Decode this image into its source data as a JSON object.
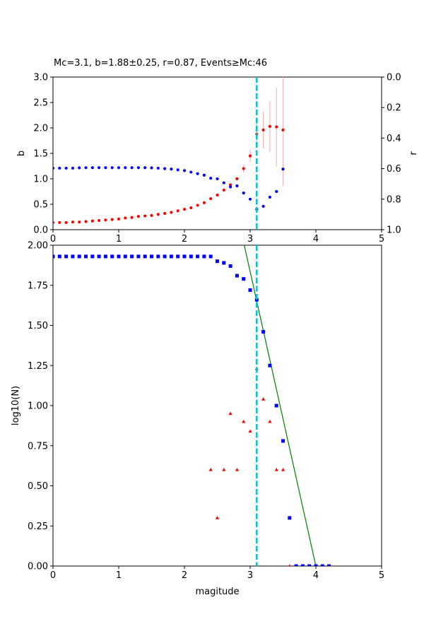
{
  "title": "Mc=3.1, b=1.88±0.25, r=0.87, Events≥Mc:46",
  "colors": {
    "b_series": "#ff0000",
    "r_series": "#0000ff",
    "mc_line": "#17becf",
    "fit_line": "#008000",
    "errorbar": "#ffb6b6",
    "cum_series": "#0000ff",
    "noncum_series": "#ff0000"
  },
  "chart_data": [
    {
      "type": "scatter",
      "panel": "top",
      "xlim": [
        0,
        5
      ],
      "ylim": [
        0,
        3
      ],
      "y2lim": [
        0,
        1
      ],
      "y2_inverted": true,
      "ylabel": "b",
      "y2label": "r",
      "xticks": [
        "0",
        "1",
        "2",
        "3",
        "4",
        "5"
      ],
      "yticks": [
        "0.0",
        "0.5",
        "1.0",
        "1.5",
        "2.0",
        "2.5",
        "3.0"
      ],
      "y2ticks": [
        "0.0",
        "0.2",
        "0.4",
        "0.6",
        "0.8",
        "1.0"
      ],
      "mc": 3.1,
      "series": [
        {
          "axis": "left",
          "x": [
            0.0,
            0.1,
            0.2,
            0.3,
            0.4,
            0.5,
            0.6,
            0.7,
            0.8,
            0.9,
            1.0,
            1.1,
            1.2,
            1.3,
            1.4,
            1.5,
            1.6,
            1.7,
            1.8,
            1.9,
            2.0,
            2.1,
            2.2,
            2.3,
            2.4,
            2.5,
            2.6,
            2.7,
            2.8,
            2.9,
            3.0,
            3.1,
            3.2,
            3.3,
            3.4,
            3.5
          ],
          "values": [
            0.14,
            0.14,
            0.14,
            0.15,
            0.15,
            0.16,
            0.17,
            0.18,
            0.19,
            0.2,
            0.21,
            0.23,
            0.24,
            0.26,
            0.27,
            0.28,
            0.3,
            0.32,
            0.34,
            0.37,
            0.4,
            0.43,
            0.48,
            0.53,
            0.61,
            0.68,
            0.78,
            0.88,
            1.0,
            1.2,
            1.45,
            1.88,
            1.96,
            2.03,
            2.02,
            1.96
          ],
          "err": [
            0,
            0,
            0,
            0,
            0,
            0,
            0,
            0,
            0,
            0,
            0,
            0,
            0,
            0,
            0,
            0,
            0,
            0,
            0,
            0,
            0,
            0,
            0,
            0,
            0,
            0,
            0,
            0,
            0,
            0.08,
            0.12,
            0.25,
            0.36,
            0.5,
            0.78,
            1.1
          ]
        },
        {
          "axis": "right",
          "x": [
            0.0,
            0.1,
            0.2,
            0.3,
            0.4,
            0.5,
            0.6,
            0.7,
            0.8,
            0.9,
            1.0,
            1.1,
            1.2,
            1.3,
            1.4,
            1.5,
            1.6,
            1.7,
            1.8,
            1.9,
            2.0,
            2.1,
            2.2,
            2.3,
            2.4,
            2.5,
            2.6,
            2.7,
            2.8,
            2.9,
            3.0,
            3.1,
            3.2,
            3.3,
            3.4,
            3.5
          ],
          "values": [
            0.597,
            0.597,
            0.597,
            0.597,
            0.595,
            0.594,
            0.594,
            0.594,
            0.594,
            0.594,
            0.594,
            0.594,
            0.594,
            0.594,
            0.594,
            0.595,
            0.597,
            0.6,
            0.603,
            0.608,
            0.613,
            0.623,
            0.633,
            0.643,
            0.663,
            0.667,
            0.693,
            0.72,
            0.713,
            0.76,
            0.8,
            0.867,
            0.847,
            0.787,
            0.75,
            0.603
          ]
        }
      ]
    },
    {
      "type": "scatter",
      "panel": "bottom",
      "xlim": [
        0,
        5
      ],
      "ylim": [
        0,
        2
      ],
      "xlabel": "magitude",
      "ylabel": "log10(N)",
      "xticks": [
        "0",
        "1",
        "2",
        "3",
        "4",
        "5"
      ],
      "yticks": [
        "0.00",
        "0.25",
        "0.50",
        "0.75",
        "1.00",
        "1.25",
        "1.50",
        "1.75",
        "2.00"
      ],
      "mc": 3.1,
      "fit_line": {
        "x": [
          2.91,
          4.0
        ],
        "y": [
          2.0,
          0.0
        ]
      },
      "series": [
        {
          "marker": "square",
          "x": [
            0.0,
            0.1,
            0.2,
            0.3,
            0.4,
            0.5,
            0.6,
            0.7,
            0.8,
            0.9,
            1.0,
            1.1,
            1.2,
            1.3,
            1.4,
            1.5,
            1.6,
            1.7,
            1.8,
            1.9,
            2.0,
            2.1,
            2.2,
            2.3,
            2.4,
            2.5,
            2.6,
            2.7,
            2.8,
            2.9,
            3.0,
            3.1,
            3.2,
            3.3,
            3.4,
            3.5,
            3.6,
            3.7,
            3.8,
            3.9,
            4.0,
            4.1,
            4.2
          ],
          "values": [
            1.93,
            1.93,
            1.93,
            1.93,
            1.93,
            1.93,
            1.93,
            1.93,
            1.93,
            1.93,
            1.93,
            1.93,
            1.93,
            1.93,
            1.93,
            1.93,
            1.93,
            1.93,
            1.93,
            1.93,
            1.93,
            1.93,
            1.93,
            1.93,
            1.93,
            1.9,
            1.89,
            1.87,
            1.81,
            1.79,
            1.72,
            1.66,
            1.46,
            1.25,
            1.0,
            0.78,
            0.3,
            0.0,
            0.0,
            0.0,
            0.0,
            0.0,
            0.0
          ]
        },
        {
          "marker": "triangle",
          "x": [
            2.4,
            2.5,
            2.6,
            2.7,
            2.8,
            2.9,
            3.0,
            3.1,
            3.2,
            3.3,
            3.4,
            3.5,
            3.6
          ],
          "values": [
            0.6,
            0.3,
            0.6,
            0.95,
            0.6,
            0.9,
            0.84,
            1.23,
            1.04,
            0.9,
            0.6,
            0.6,
            0.0
          ]
        }
      ]
    }
  ]
}
